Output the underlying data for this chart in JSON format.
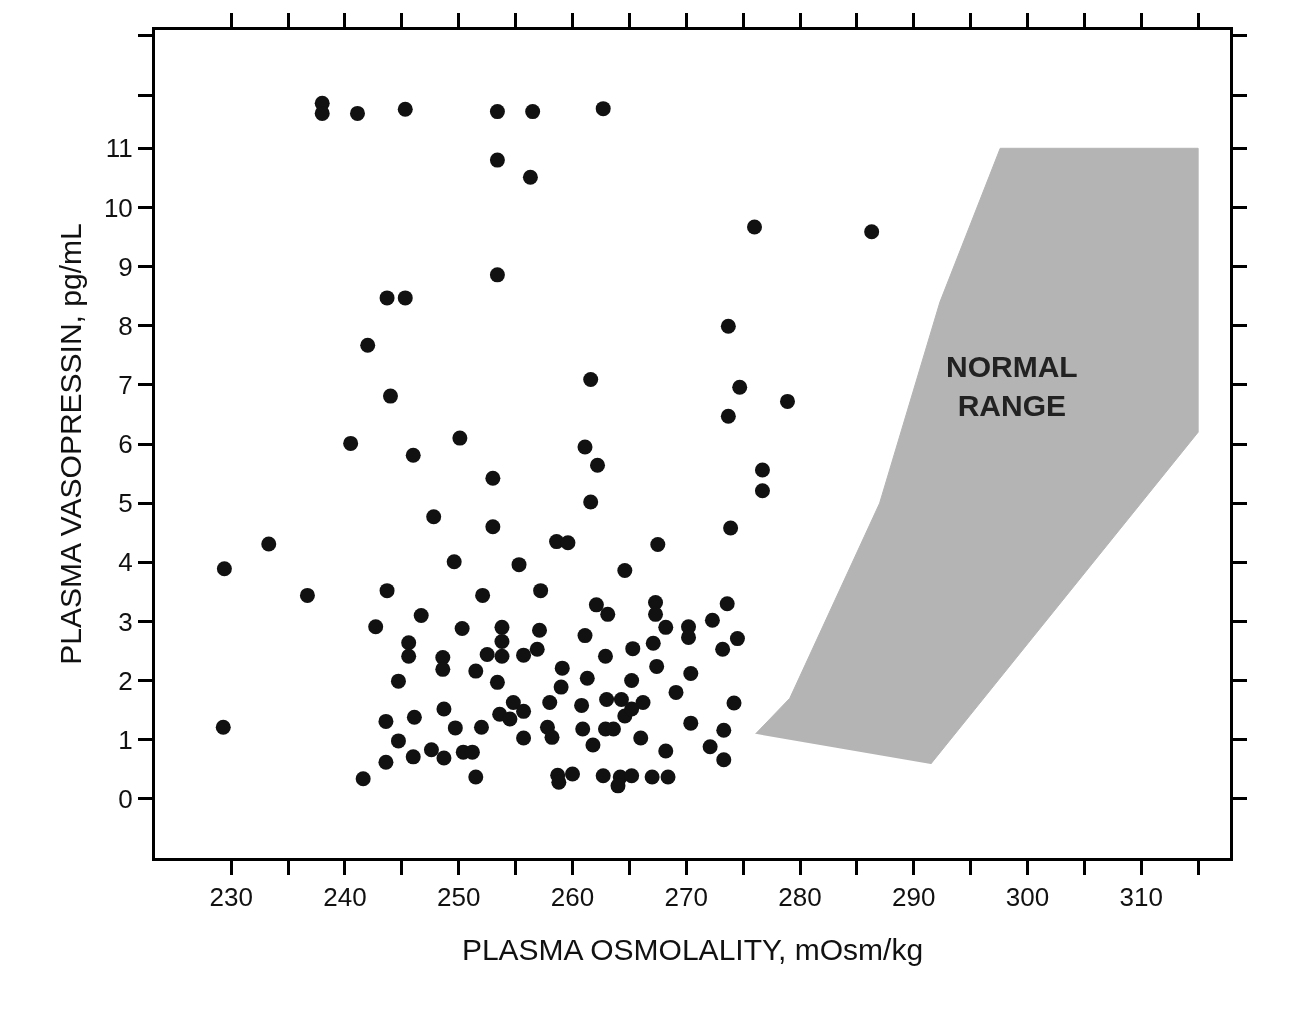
{
  "chart_data": {
    "type": "scatter",
    "xlabel": "PLASMA OSMOLALITY, mOsm/kg",
    "ylabel": "PLASMA VASOPRESSIN, pg/mL",
    "xlim": [
      223.3,
      317.8
    ],
    "ylim": [
      -1.0,
      13.0
    ],
    "xticks": [
      230,
      {
        "value": 235,
        "label": null
      },
      240,
      {
        "value": 245,
        "label": null
      },
      250,
      {
        "value": 255,
        "label": null
      },
      260,
      {
        "value": 265,
        "label": null
      },
      270,
      {
        "value": 275,
        "label": null
      },
      280,
      {
        "value": 285,
        "label": null
      },
      290,
      {
        "value": 295,
        "label": null
      },
      300,
      {
        "value": 305,
        "label": null
      },
      310,
      {
        "value": 315,
        "label": null
      }
    ],
    "yticks": [
      0,
      1,
      2,
      3,
      4,
      5,
      6,
      7,
      8,
      9,
      10,
      11,
      {
        "value": 11.9,
        "label": null
      },
      {
        "value": 12.9,
        "label": null
      }
    ],
    "series": [
      {
        "type": "area",
        "color": "#b4b4b4",
        "x": [
          276.1,
          279.1,
          287.0,
          292.3,
          297.6,
          315.0,
          315.0,
          291.5
        ],
        "values": [
          1.1,
          1.7,
          5.0,
          8.4,
          11.0,
          11.0,
          6.2,
          0.59
        ]
      },
      {
        "marker": "circle",
        "color": "#111111",
        "x": [
          238.0,
          238.0,
          241.1,
          245.3,
          253.4,
          256.5,
          262.7,
          253.4,
          256.3,
          276.0,
          286.3,
          253.4,
          243.7,
          245.3,
          273.7,
          242.0,
          261.6,
          244.0,
          274.7,
          278.9,
          273.7,
          240.5,
          250.1,
          261.1,
          262.2,
          246.0,
          276.7,
          276.7,
          253.0,
          261.6,
          247.8,
          253.0,
          273.9,
          229.4,
          233.3,
          258.6,
          259.6,
          267.5,
          255.3,
          249.6,
          264.6,
          236.7,
          243.7,
          252.1,
          257.2,
          246.7,
          242.7,
          250.3,
          262.1,
          263.1,
          267.3,
          267.3,
          245.6,
          245.6,
          248.6,
          248.6,
          252.5,
          251.5,
          244.7,
          229.3,
          243.6,
          246.1,
          248.7,
          249.7,
          252.0,
          244.7,
          243.6,
          246.0,
          247.6,
          248.7,
          250.4,
          251.2,
          251.5,
          241.6,
          273.6,
          253.8,
          253.8,
          253.8,
          257.1,
          261.1,
          268.2,
          270.2,
          270.2,
          272.3,
          274.5,
          273.2,
          267.1,
          265.3,
          262.9,
          256.9,
          255.7,
          253.4,
          259.1,
          259.0,
          261.3,
          265.2,
          267.4,
          270.4,
          269.1,
          253.6,
          254.5,
          254.8,
          255.7,
          258.0,
          260.8,
          263.0,
          264.3,
          266.2,
          264.6,
          265.2,
          255.7,
          257.8,
          258.2,
          260.9,
          262.9,
          263.6,
          261.8,
          266.0,
          270.4,
          273.3,
          274.2,
          272.1,
          273.3,
          268.2,
          258.7,
          260.0,
          258.8,
          262.7,
          264.2,
          265.2,
          264.0,
          267.0,
          268.4
        ],
        "values": [
          11.76,
          11.59,
          11.59,
          11.66,
          11.62,
          11.62,
          11.67,
          10.8,
          10.51,
          9.67,
          9.59,
          8.86,
          8.47,
          8.47,
          7.99,
          7.67,
          7.09,
          6.81,
          6.96,
          6.72,
          6.47,
          6.01,
          6.1,
          5.95,
          5.64,
          5.81,
          5.56,
          5.21,
          5.42,
          5.02,
          4.77,
          4.6,
          4.58,
          3.89,
          4.31,
          4.35,
          4.33,
          4.3,
          3.96,
          4.01,
          3.86,
          3.44,
          3.52,
          3.44,
          3.52,
          3.1,
          2.91,
          2.88,
          3.28,
          3.12,
          3.32,
          3.12,
          2.64,
          2.41,
          2.39,
          2.19,
          2.44,
          2.16,
          1.99,
          1.21,
          1.31,
          1.38,
          1.52,
          1.2,
          1.21,
          0.98,
          0.62,
          0.71,
          0.83,
          0.69,
          0.79,
          0.79,
          0.37,
          0.34,
          3.3,
          2.9,
          2.66,
          2.41,
          2.85,
          2.76,
          2.9,
          2.91,
          2.73,
          3.02,
          2.71,
          2.53,
          2.63,
          2.54,
          2.41,
          2.53,
          2.43,
          1.97,
          2.21,
          1.89,
          2.04,
          2.0,
          2.24,
          2.12,
          1.8,
          1.43,
          1.35,
          1.63,
          1.48,
          1.63,
          1.58,
          1.68,
          1.68,
          1.63,
          1.4,
          1.52,
          1.03,
          1.21,
          1.04,
          1.18,
          1.18,
          1.18,
          0.91,
          1.03,
          1.28,
          1.16,
          1.62,
          0.88,
          0.66,
          0.81,
          0.4,
          0.42,
          0.28,
          0.39,
          0.37,
          0.39,
          0.22,
          0.37,
          0.37
        ]
      }
    ],
    "annotations": [
      "NORMAL\nRANGE"
    ]
  }
}
